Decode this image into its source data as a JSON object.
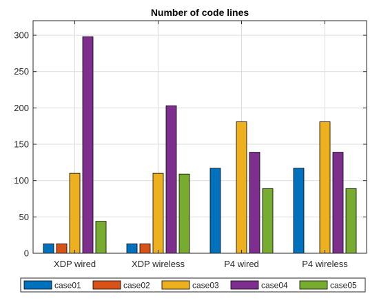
{
  "chart_data": {
    "type": "bar",
    "title": "Number of code lines",
    "xlabel": "",
    "ylabel": "",
    "categories": [
      "XDP wired",
      "XDP wireless",
      "P4 wired",
      "P4 wireless"
    ],
    "ylim": [
      0,
      320
    ],
    "yticks": [
      0,
      50,
      100,
      150,
      200,
      250,
      300
    ],
    "grid": true,
    "legend_position": "bottom",
    "series": [
      {
        "name": "case01",
        "color": "#0072BD",
        "values": [
          13,
          13,
          117,
          117
        ]
      },
      {
        "name": "case02",
        "color": "#D95319",
        "values": [
          13,
          13,
          0,
          0
        ]
      },
      {
        "name": "case03",
        "color": "#EDB120",
        "values": [
          110,
          110,
          181,
          181
        ]
      },
      {
        "name": "case04",
        "color": "#7E2F8E",
        "values": [
          298,
          203,
          139,
          139
        ]
      },
      {
        "name": "case05",
        "color": "#77AC30",
        "values": [
          44,
          109,
          89,
          89
        ]
      }
    ]
  }
}
